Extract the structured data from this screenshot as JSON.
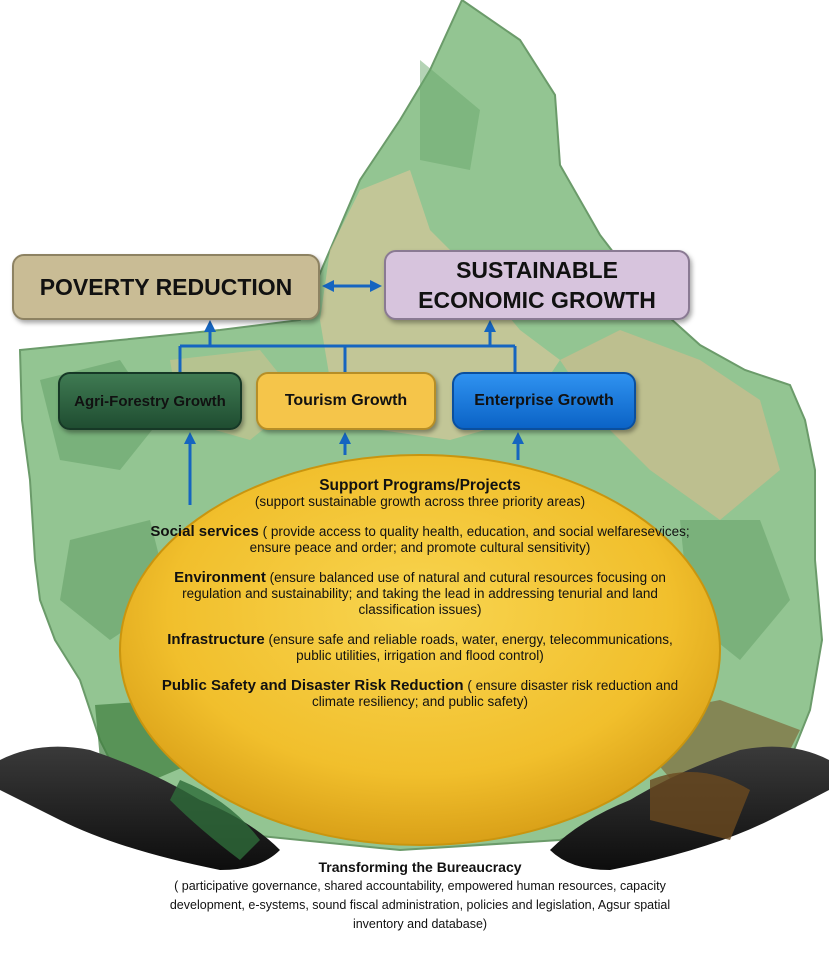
{
  "poverty_reduction": "POVERTY REDUCTION",
  "sustainable_growth": {
    "line1": "SUSTAINABLE",
    "line2": "ECONOMIC GROWTH"
  },
  "priority_areas": [
    {
      "label": "Agri-Forestry Growth",
      "color": "#2a5e3e"
    },
    {
      "label": "Tourism Growth",
      "color": "#f5c54a"
    },
    {
      "label": "Enterprise Growth",
      "color": "#1a7ee0"
    }
  ],
  "support": {
    "heading": "Support Programs/Projects",
    "desc": "(support sustainable growth across three priority areas)",
    "items": [
      {
        "heading": "Social services",
        "desc": " ( provide access to quality health, education, and social welfaresevices; ensure peace and order; and promote cultural sensitivity)"
      },
      {
        "heading": "Environment",
        "desc": " (ensure balanced use of natural and cutural resources focusing on regulation and sustainability; and taking the lead in addressing tenurial and land classification issues)"
      },
      {
        "heading": "Infrastructure",
        "desc": " (ensure safe and reliable roads, water, energy, telecommunications, public utilities, irrigation and flood control)"
      },
      {
        "heading": "Public Safety and Disaster Risk Reduction",
        "desc": " ( ensure disaster risk reduction and climate resiliency; and public safety)"
      }
    ]
  },
  "bureaucracy": {
    "heading": "Transforming the Bureaucracy",
    "desc": "( participative governance, shared accountability, empowered human resources, capacity development, e-systems, sound fiscal administration, policies and legislation, Agsur spatial inventory and database)"
  },
  "colors": {
    "map_green": "#8fc48f",
    "ellipse_yellow": "#f4c636",
    "arrow_blue": "#1565c0"
  }
}
